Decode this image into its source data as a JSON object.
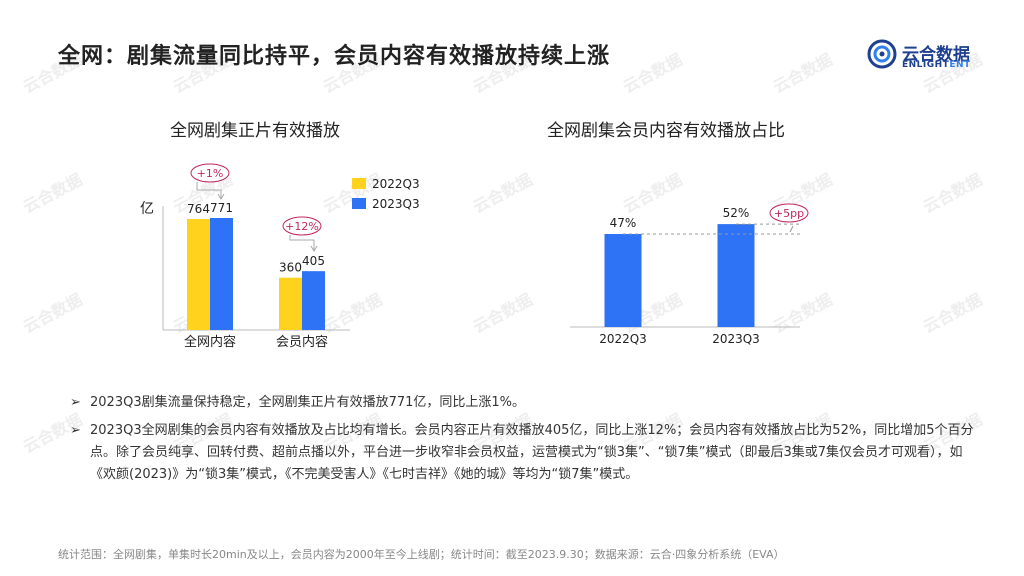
{
  "page": {
    "title": "全网：剧集流量同比持平，会员内容有效播放持续上涨",
    "logo_cn": "云合数据",
    "logo_en_a": "ENLIGHT",
    "logo_en_b": "ENT"
  },
  "colors": {
    "q2022": "#FFD21E",
    "q2023": "#2E72F5",
    "highlight": "#C0285A"
  },
  "chart_data": [
    {
      "type": "bar",
      "title": "全网剧集正片有效播放",
      "ylabel": "亿",
      "categories": [
        "全网内容",
        "会员内容"
      ],
      "series": [
        {
          "name": "2022Q3",
          "values": [
            764,
            360
          ]
        },
        {
          "name": "2023Q3",
          "values": [
            771,
            405
          ]
        }
      ],
      "ylim": [
        0,
        900
      ],
      "legend": "top-right",
      "annotations": [
        "+1%",
        "+12%"
      ]
    },
    {
      "type": "bar",
      "title": "全网剧集会员内容有效播放占比",
      "categories": [
        "2022Q3",
        "2023Q3"
      ],
      "values": [
        47,
        52
      ],
      "value_labels": [
        "47%",
        "52%"
      ],
      "ylim": [
        0,
        60
      ],
      "annotations": [
        "+5pp"
      ]
    }
  ],
  "bullets": [
    "2023Q3剧集流量保持稳定，全网剧集正片有效播放771亿，同比上涨1%。",
    "2023Q3全网剧集的会员内容有效播放及占比均有增长。会员内容正片有效播放405亿，同比上涨12%；会员内容有效播放占比为52%，同比增加5个百分点。除了会员纯享、回转付费、超前点播以外，平台进一步收窄非会员权益，运营模式为“锁3集”、“锁7集”模式（即最后3集或7集仅会员才可观看），如《欢颜(2023)》为“锁3集”模式，《不完美受害人》《七时吉祥》《她的城》等均为“锁7集”模式。"
  ],
  "footer": "统计范围：全网剧集，单集时长20min及以上，会员内容为2000年至今上线剧；统计时间：截至2023.9.30；数据来源：云合·四象分析系统（EVA）",
  "bullet_marker": "➢"
}
